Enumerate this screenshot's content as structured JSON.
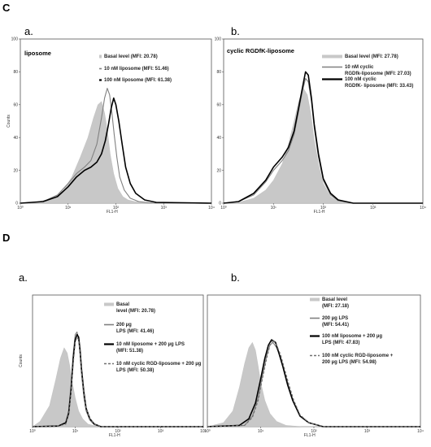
{
  "figure": {
    "section_c_label": "C",
    "section_d_label": "D"
  },
  "chart_data": [
    {
      "id": "c-a",
      "type": "area",
      "panel_label": "a.",
      "title": "liposome",
      "xlabel": "FL1-H",
      "ylabel": "Counts",
      "x_scale": "log",
      "xlim": [
        1,
        10000
      ],
      "ylim": [
        0,
        100
      ],
      "x_ticks": [
        "10⁰",
        "10¹",
        "10²",
        "10³",
        "10⁴"
      ],
      "y_ticks": [
        "0",
        "20",
        "40",
        "60",
        "80",
        "100"
      ],
      "grid": false,
      "legend_position": "top-right",
      "series": [
        {
          "name": "Basal level (MFI: 20.78)",
          "color": "#c8c8c8",
          "style": "filled",
          "x": [
            1,
            2,
            5,
            8,
            12,
            18,
            26,
            34,
            42,
            50,
            58,
            66,
            76,
            90,
            110,
            140,
            180,
            250,
            400,
            1000,
            10000
          ],
          "y": [
            0,
            0.5,
            3,
            8,
            16,
            28,
            40,
            52,
            60,
            62,
            55,
            45,
            30,
            18,
            9,
            4,
            2,
            1,
            0.5,
            0,
            0
          ]
        },
        {
          "name": "10 nM liposome (MFI: 51.46)",
          "color": "#808080",
          "style": "line",
          "x": [
            1,
            3,
            6,
            10,
            15,
            22,
            30,
            40,
            50,
            58,
            66,
            74,
            82,
            92,
            105,
            120,
            150,
            200,
            300,
            600,
            10000
          ],
          "y": [
            0,
            1,
            5,
            12,
            18,
            22,
            26,
            36,
            52,
            64,
            70,
            66,
            56,
            42,
            28,
            16,
            8,
            3,
            1,
            0,
            0
          ]
        },
        {
          "name": "100 nM liposome (MFI: 61.38)",
          "color": "#000000",
          "style": "line",
          "x": [
            1,
            3,
            6,
            10,
            15,
            22,
            30,
            40,
            50,
            60,
            70,
            80,
            90,
            100,
            115,
            135,
            160,
            200,
            260,
            400,
            700,
            10000
          ],
          "y": [
            0,
            1,
            4,
            10,
            16,
            20,
            22,
            25,
            30,
            38,
            48,
            58,
            64,
            60,
            50,
            36,
            22,
            12,
            6,
            2,
            0.5,
            0
          ]
        }
      ]
    },
    {
      "id": "c-b",
      "type": "area",
      "panel_label": "b.",
      "title": "cyclic RGDfK-liposome",
      "xlabel": "FL1-H",
      "ylabel": "",
      "x_scale": "log",
      "xlim": [
        1,
        10000
      ],
      "ylim": [
        0,
        100
      ],
      "x_ticks": [
        "10⁰",
        "10¹",
        "10²",
        "10³",
        "10⁴"
      ],
      "y_ticks": [
        "0",
        "20",
        "40",
        "60",
        "80",
        "100"
      ],
      "grid": false,
      "legend_position": "top-right",
      "series": [
        {
          "name": "Basal level (MFI: 27.78)",
          "color": "#c8c8c8",
          "style": "filled",
          "x": [
            1,
            2,
            4,
            7,
            10,
            15,
            20,
            26,
            32,
            40,
            48,
            56,
            65,
            80,
            100,
            140,
            200,
            400,
            10000
          ],
          "y": [
            0,
            0.5,
            3,
            8,
            14,
            24,
            36,
            50,
            62,
            70,
            66,
            55,
            40,
            24,
            12,
            4,
            1,
            0,
            0
          ]
        },
        {
          "name": "10 nM cyclic RGDfk-liposome (MFI: 27.03)",
          "color": "#808080",
          "style": "line",
          "x": [
            1,
            2,
            4,
            7,
            10,
            15,
            20,
            26,
            32,
            38,
            44,
            50,
            58,
            66,
            80,
            100,
            140,
            200,
            400,
            10000
          ],
          "y": [
            0,
            1,
            5,
            13,
            20,
            26,
            32,
            42,
            56,
            68,
            76,
            74,
            62,
            46,
            28,
            14,
            5,
            1.5,
            0,
            0
          ]
        },
        {
          "name": "100 nM  cyclic RGDfK- liposome (MFI: 33.43)",
          "color": "#000000",
          "style": "line",
          "x": [
            1,
            2,
            4,
            7,
            10,
            15,
            20,
            26,
            32,
            38,
            44,
            50,
            58,
            66,
            80,
            100,
            140,
            200,
            400,
            10000
          ],
          "y": [
            0,
            1,
            6,
            14,
            22,
            28,
            34,
            44,
            58,
            70,
            80,
            78,
            64,
            48,
            30,
            15,
            6,
            2,
            0,
            0
          ]
        }
      ]
    },
    {
      "id": "d-a",
      "type": "area",
      "panel_label": "a.",
      "title": "",
      "xlabel": "FL1-H",
      "ylabel": "Counts",
      "x_scale": "log",
      "xlim": [
        1,
        10000
      ],
      "ylim": [
        0,
        100
      ],
      "x_ticks": [
        "10⁰",
        "10¹",
        "10²",
        "10³",
        "10⁴"
      ],
      "y_ticks": [],
      "grid": false,
      "legend_position": "top-right",
      "series": [
        {
          "name": "Basal level (MFI: 20.78)",
          "color": "#c8c8c8",
          "style": "filled",
          "x": [
            1,
            1.5,
            2.5,
            3.5,
            4.5,
            5.5,
            6.5,
            7.5,
            8.5,
            10,
            12,
            15,
            20,
            30,
            60,
            10000
          ],
          "y": [
            0,
            4,
            16,
            36,
            52,
            60,
            56,
            46,
            34,
            22,
            12,
            6,
            2,
            0.5,
            0,
            0
          ]
        },
        {
          "name": "200 µg LPS (MFI: 41.46)",
          "color": "#808080",
          "style": "line",
          "x": [
            1,
            4,
            6,
            7,
            8,
            9,
            10,
            11,
            12,
            13,
            14,
            16,
            18,
            22,
            28,
            40,
            10000
          ],
          "y": [
            0,
            0.5,
            3,
            12,
            32,
            56,
            70,
            72,
            66,
            54,
            40,
            22,
            12,
            5,
            1.5,
            0,
            0
          ]
        },
        {
          "name": "10 nM liposome + 200 µg LPS (MFI: 51.38)",
          "color": "#000000",
          "style": "line",
          "x": [
            1,
            4,
            6,
            7,
            8,
            9,
            10,
            11,
            12,
            13,
            14,
            16,
            18,
            22,
            28,
            40,
            10000
          ],
          "y": [
            0,
            0.5,
            3,
            10,
            28,
            52,
            66,
            70,
            68,
            58,
            44,
            26,
            14,
            6,
            2,
            0,
            0
          ]
        },
        {
          "name": "10 nM cyclic RGD-liposome + 200 µg LPS (MFI: 50.38)",
          "color": "#707070",
          "style": "dashed",
          "x": [
            1,
            4,
            6,
            7,
            8,
            9,
            10,
            11,
            12,
            13,
            14,
            16,
            18,
            22,
            28,
            40,
            10000
          ],
          "y": [
            0,
            0.5,
            2,
            9,
            26,
            48,
            64,
            68,
            66,
            56,
            42,
            25,
            14,
            6,
            2,
            0,
            0
          ]
        }
      ]
    },
    {
      "id": "d-b",
      "type": "area",
      "panel_label": "b.",
      "title": "",
      "xlabel": "FL1-H",
      "ylabel": "",
      "x_scale": "log",
      "xlim": [
        1,
        10000
      ],
      "ylim": [
        0,
        100
      ],
      "x_ticks": [
        "10⁰",
        "10¹",
        "10²",
        "10³",
        "10⁴"
      ],
      "y_ticks": [],
      "grid": false,
      "legend_position": "top-right",
      "series": [
        {
          "name": "Basal level (MFI: 27.18)",
          "color": "#c8c8c8",
          "style": "filled",
          "x": [
            1,
            2,
            3,
            4,
            5,
            6,
            7,
            8,
            9,
            10,
            12,
            15,
            20,
            30,
            60,
            10000
          ],
          "y": [
            0,
            3,
            12,
            30,
            48,
            60,
            64,
            58,
            46,
            34,
            20,
            10,
            4,
            1,
            0,
            0
          ]
        },
        {
          "name": "200 µg LPS (MFI: 54.41)",
          "color": "#808080",
          "style": "line",
          "x": [
            1,
            5,
            7,
            9,
            11,
            13,
            15,
            17,
            20,
            24,
            28,
            34,
            42,
            55,
            80,
            150,
            10000
          ],
          "y": [
            0,
            1,
            8,
            22,
            40,
            54,
            62,
            64,
            60,
            52,
            42,
            30,
            18,
            8,
            3,
            0,
            0
          ]
        },
        {
          "name": "100 nM liposome + 200 µg LPS (MFI: 47.83)",
          "color": "#000000",
          "style": "line",
          "x": [
            1,
            4,
            6,
            8,
            10,
            12,
            14,
            16,
            19,
            22,
            26,
            32,
            40,
            55,
            80,
            150,
            10000
          ],
          "y": [
            0,
            1,
            6,
            18,
            36,
            52,
            62,
            66,
            64,
            56,
            46,
            32,
            20,
            8,
            3,
            0,
            0
          ]
        },
        {
          "name": "100 nM cyclic RGD-liposome + 200 µg LPS (MFI: 54.98)",
          "color": "#707070",
          "style": "dashed",
          "x": [
            1,
            5,
            7,
            9,
            11,
            13,
            15,
            17,
            20,
            24,
            28,
            34,
            42,
            55,
            80,
            150,
            10000
          ],
          "y": [
            0,
            1,
            7,
            20,
            38,
            52,
            62,
            66,
            62,
            54,
            44,
            32,
            20,
            9,
            3,
            0,
            0
          ]
        }
      ]
    }
  ]
}
